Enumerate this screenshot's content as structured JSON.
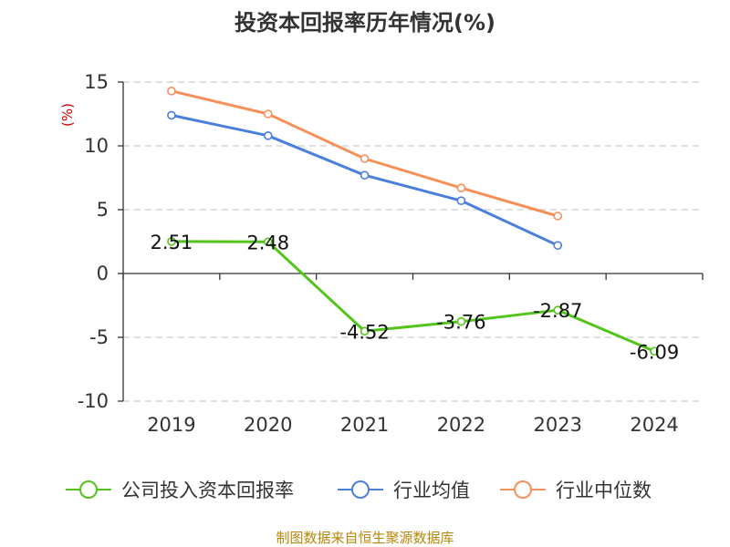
{
  "chart_data": {
    "type": "line",
    "title": "投资本回报率历年情况(%)",
    "ylabel": "(%)",
    "categories": [
      "2019",
      "2020",
      "2021",
      "2022",
      "2023",
      "2024"
    ],
    "y_ticks": [
      "15",
      "10",
      "5",
      "0",
      "-5",
      "-10"
    ],
    "ylim": [
      -10,
      15
    ],
    "grid": true,
    "legend_position": "bottom",
    "series": [
      {
        "name": "公司投入资本回报率",
        "color": "#52c41a",
        "values": [
          2.51,
          2.48,
          -4.52,
          -3.76,
          -2.87,
          -6.09
        ],
        "labels": [
          "2.51",
          "2.48",
          "-4.52",
          "-3.76",
          "-2.87",
          "-6.09"
        ]
      },
      {
        "name": "行业均值",
        "color": "#4a7fdc",
        "values": [
          12.4,
          10.8,
          7.7,
          5.7,
          2.2,
          null
        ]
      },
      {
        "name": "行业中位数",
        "color": "#f5905a",
        "values": [
          14.3,
          12.5,
          9.0,
          6.7,
          4.5,
          null
        ]
      }
    ]
  },
  "source_note": "制图数据来自恒生聚源数据库"
}
